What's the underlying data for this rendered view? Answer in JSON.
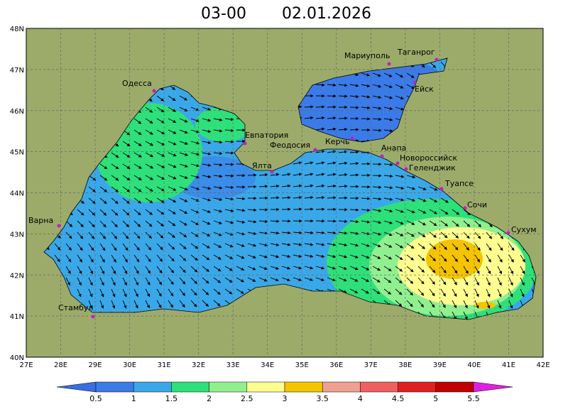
{
  "header": {
    "time": "03-00",
    "date": "02.01.2026"
  },
  "map": {
    "lat_labels": [
      "48N",
      "47N",
      "46N",
      "45N",
      "44N",
      "43N",
      "42N",
      "41N",
      "40N"
    ],
    "lon_labels": [
      "27E",
      "28E",
      "29E",
      "30E",
      "31E",
      "32E",
      "33E",
      "34E",
      "35E",
      "36E",
      "37E",
      "38E",
      "39E",
      "40E",
      "41E",
      "42E"
    ],
    "cities": [
      "Одесса",
      "Мариуполь",
      "Таганрог",
      "Ейск",
      "Евпатория",
      "Феодосия",
      "Керчь",
      "Анапа",
      "Новороссийск",
      "Геленджик",
      "Ялта",
      "Туапсе",
      "Сочи",
      "Сухум",
      "Варна",
      "Стамбул"
    ]
  },
  "legend": {
    "labels": [
      0.5,
      1,
      1.5,
      2,
      2.5,
      3,
      3.5,
      4,
      4.5,
      5,
      5.5
    ]
  }
}
